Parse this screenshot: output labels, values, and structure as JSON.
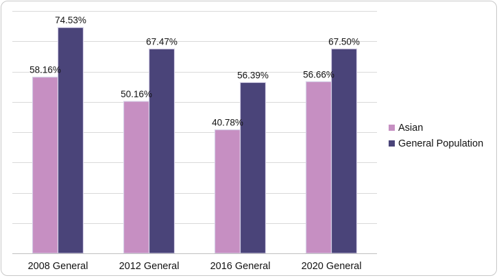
{
  "chart_data": {
    "type": "bar",
    "categories": [
      "2008 General",
      "2012 General",
      "2016 General",
      "2020 General"
    ],
    "series": [
      {
        "name": "Asian",
        "values": [
          58.16,
          50.16,
          40.78,
          56.66
        ],
        "labels": [
          "58.16%",
          "50.16%",
          "40.78%",
          "56.66%"
        ],
        "color": "#c68fc2"
      },
      {
        "name": "General Population",
        "values": [
          74.53,
          67.47,
          56.39,
          67.5
        ],
        "labels": [
          "74.53%",
          "67.47%",
          "56.39%",
          "67.50%"
        ],
        "color": "#4a4479"
      }
    ],
    "ylim": [
      0,
      80
    ],
    "grid": true,
    "legend": "right",
    "title": "",
    "xlabel": "",
    "ylabel": ""
  }
}
